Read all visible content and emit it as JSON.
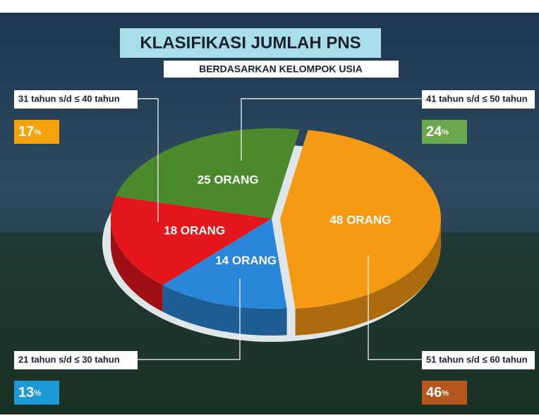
{
  "chart_data": {
    "type": "pie",
    "title": "KLASIFIKASI JUMLAH PNS",
    "subtitle": "BERDASARKAN KELOMPOK USIA",
    "categories": [
      "51 tahun s/d ≤ 60 tahun",
      "21 tahun s/d ≤ 30 tahun",
      "31 tahun s/d ≤ 40 tahun",
      "41 tahun s/d ≤ 50 tahun"
    ],
    "values": [
      48,
      14,
      18,
      25
    ],
    "value_labels": [
      "48 ORANG",
      "14 ORANG",
      "18 ORANG",
      "25 ORANG"
    ],
    "colors": [
      "#f59a12",
      "#2a86d8",
      "#e3161b",
      "#4a8a2c"
    ],
    "percents": [
      46,
      13,
      17,
      24
    ],
    "percent_labels": [
      "46%",
      "13%",
      "17%",
      "24%"
    ],
    "percent_colors": [
      "#b5561d",
      "#1d9ad6",
      "#f5a20d",
      "#6aa84f"
    ]
  }
}
